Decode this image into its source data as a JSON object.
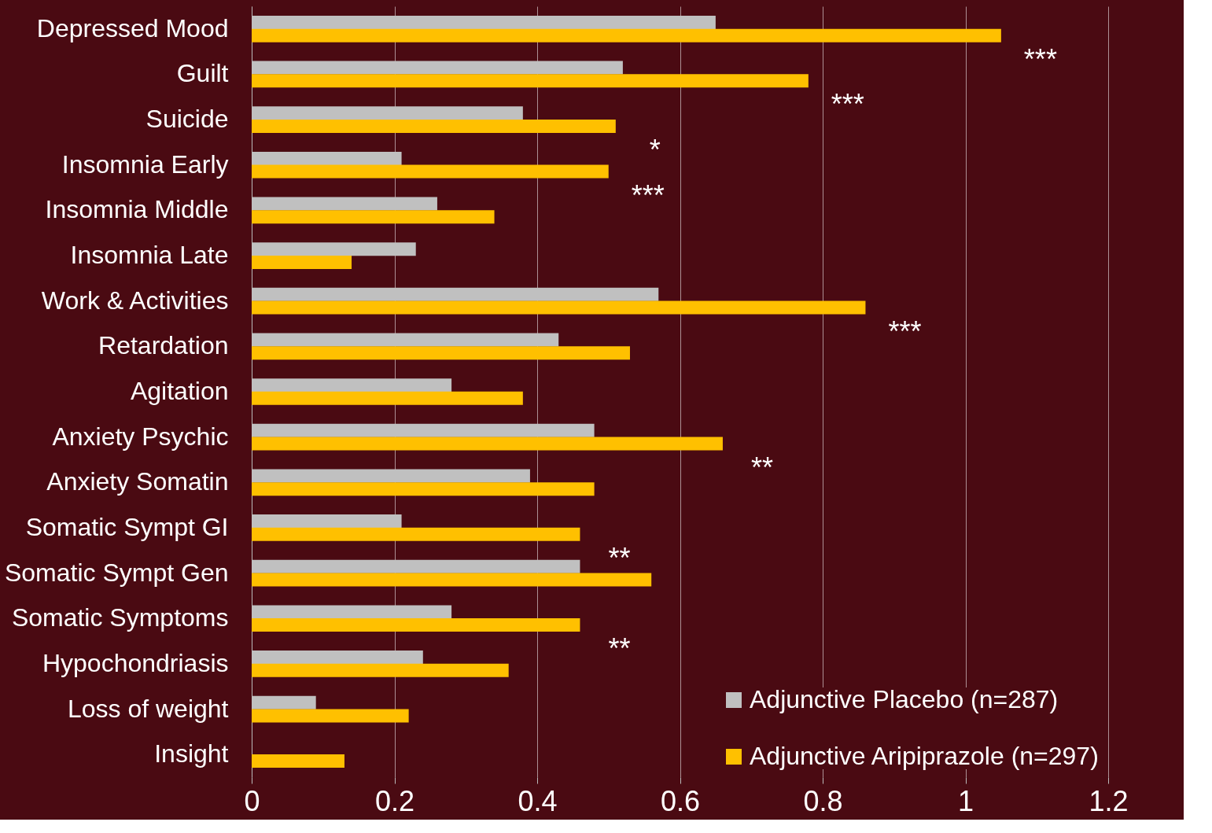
{
  "chart_data": {
    "type": "bar",
    "orientation": "horizontal",
    "categories": [
      "Depressed Mood",
      "Guilt",
      "Suicide",
      "Insomnia Early",
      "Insomnia Middle",
      "Insomnia Late",
      "Work & Activities",
      "Retardation",
      "Agitation",
      "Anxiety Psychic",
      "Anxiety Somatin",
      "Somatic Sympt GI",
      "Somatic Sympt Gen",
      "Somatic Symptoms",
      "Hypochondriasis",
      "Loss of weight",
      "Insight"
    ],
    "series": [
      {
        "name": "Adjunctive Placebo (n=287)",
        "color": "#c0c0c0",
        "values": [
          0.65,
          0.52,
          0.38,
          0.21,
          0.26,
          0.23,
          0.57,
          0.43,
          0.28,
          0.48,
          0.39,
          0.21,
          0.46,
          0.28,
          0.24,
          0.09,
          0
        ]
      },
      {
        "name": "Adjunctive Aripiprazole (n=297)",
        "color": "#ffc000",
        "values": [
          1.05,
          0.78,
          0.51,
          0.5,
          0.34,
          0.14,
          0.86,
          0.53,
          0.38,
          0.66,
          0.48,
          0.46,
          0.56,
          0.46,
          0.36,
          0.22,
          0.13
        ]
      }
    ],
    "xlim": [
      0,
      1.2
    ],
    "xticks": [
      0,
      0.2,
      0.4,
      0.6,
      0.8,
      1,
      1.2
    ],
    "grid": "x",
    "legend": "bottom right",
    "annotations": [
      {
        "text": "***",
        "x": 1.05,
        "y": "Depressed Mood"
      },
      {
        "text": "***",
        "x": 0.78,
        "y": "Guilt"
      },
      {
        "text": "*",
        "x": 0.51,
        "y": "Suicide"
      },
      {
        "text": "***",
        "x": 0.5,
        "y": "Insomnia Early"
      },
      {
        "text": "***",
        "x": 0.86,
        "y": "Work & Activities"
      },
      {
        "text": "**",
        "x": 0.66,
        "y": "Anxiety Psychic"
      },
      {
        "text": "**",
        "x": 0.46,
        "y": "Somatic Sympt GI"
      },
      {
        "text": "**",
        "x": 0.46,
        "y": "Somatic Symptoms"
      }
    ]
  }
}
